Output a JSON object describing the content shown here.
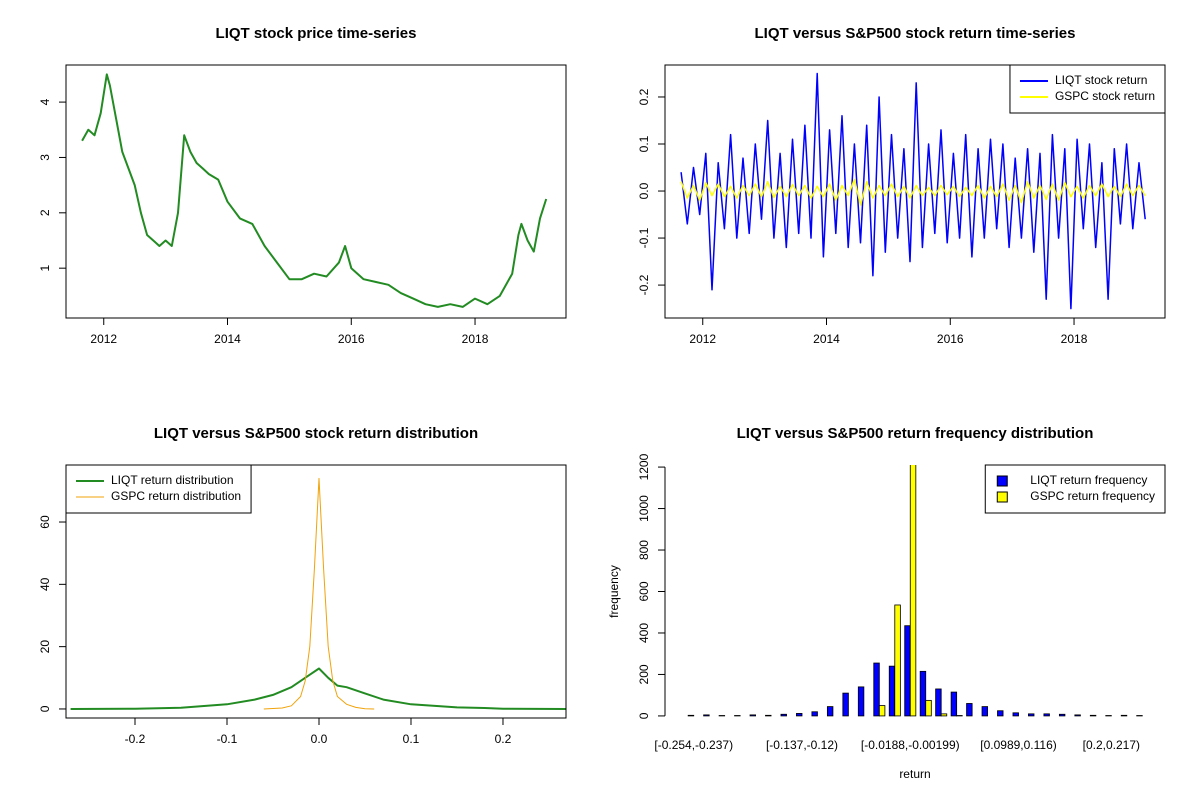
{
  "chart_data": [
    {
      "type": "line",
      "title": "LIQT stock price time-series",
      "xlim": [
        2011.39,
        2019.47
      ],
      "ylim": [
        0.1,
        4.67
      ],
      "xticks": [
        2012,
        2014,
        2016,
        2018
      ],
      "yticks": [
        1,
        2,
        3,
        4
      ],
      "x": [
        2011.65,
        2011.75,
        2011.85,
        2011.95,
        2012.05,
        2012.1,
        2012.2,
        2012.3,
        2012.4,
        2012.5,
        2012.6,
        2012.7,
        2012.8,
        2012.9,
        2013.0,
        2013.1,
        2013.2,
        2013.3,
        2013.4,
        2013.5,
        2013.6,
        2013.7,
        2013.85,
        2014.0,
        2014.2,
        2014.4,
        2014.6,
        2014.8,
        2015.0,
        2015.2,
        2015.4,
        2015.6,
        2015.8,
        2015.9,
        2016.0,
        2016.2,
        2016.4,
        2016.6,
        2016.8,
        2017.0,
        2017.2,
        2017.4,
        2017.6,
        2017.8,
        2018.0,
        2018.2,
        2018.4,
        2018.6,
        2018.7,
        2018.75,
        2018.85,
        2018.95,
        2019.05,
        2019.15
      ],
      "series": [
        {
          "color": "#228b22",
          "values": [
            3.3,
            3.5,
            3.4,
            3.8,
            4.5,
            4.3,
            3.7,
            3.1,
            2.8,
            2.5,
            2.0,
            1.6,
            1.5,
            1.4,
            1.5,
            1.4,
            2.0,
            3.4,
            3.1,
            2.9,
            2.8,
            2.7,
            2.6,
            2.2,
            1.9,
            1.8,
            1.4,
            1.1,
            0.8,
            0.8,
            0.9,
            0.85,
            1.1,
            1.4,
            1.0,
            0.8,
            0.75,
            0.7,
            0.55,
            0.45,
            0.35,
            0.3,
            0.35,
            0.3,
            0.45,
            0.35,
            0.5,
            0.9,
            1.6,
            1.8,
            1.5,
            1.3,
            1.9,
            2.25
          ]
        }
      ]
    },
    {
      "type": "line",
      "title": "LIQT versus S&P500 stock return time-series",
      "xlim": [
        2011.39,
        2019.47
      ],
      "ylim": [
        -0.27,
        0.268
      ],
      "xticks": [
        2012,
        2014,
        2016,
        2018
      ],
      "yticks": [
        -0.2,
        -0.1,
        {
          "value": 0,
          "label": "0.0"
        },
        0.1,
        0.2
      ],
      "legend": "topright",
      "x": [
        2011.65,
        2011.75,
        2011.85,
        2011.95,
        2012.05,
        2012.15,
        2012.25,
        2012.35,
        2012.45,
        2012.55,
        2012.65,
        2012.75,
        2012.85,
        2012.95,
        2013.05,
        2013.15,
        2013.25,
        2013.35,
        2013.45,
        2013.55,
        2013.65,
        2013.75,
        2013.85,
        2013.95,
        2014.05,
        2014.15,
        2014.25,
        2014.35,
        2014.45,
        2014.55,
        2014.65,
        2014.75,
        2014.85,
        2014.95,
        2015.05,
        2015.15,
        2015.25,
        2015.35,
        2015.45,
        2015.55,
        2015.65,
        2015.75,
        2015.85,
        2015.95,
        2016.05,
        2016.15,
        2016.25,
        2016.35,
        2016.45,
        2016.55,
        2016.65,
        2016.75,
        2016.85,
        2016.95,
        2017.05,
        2017.15,
        2017.25,
        2017.35,
        2017.45,
        2017.55,
        2017.65,
        2017.75,
        2017.85,
        2017.95,
        2018.05,
        2018.15,
        2018.25,
        2018.35,
        2018.45,
        2018.55,
        2018.65,
        2018.75,
        2018.85,
        2018.95,
        2019.05,
        2019.15
      ],
      "series": [
        {
          "name": "LIQT stock return",
          "color": "#0000ff",
          "values": [
            0.04,
            -0.07,
            0.05,
            -0.05,
            0.08,
            -0.21,
            0.06,
            -0.08,
            0.12,
            -0.1,
            0.07,
            -0.09,
            0.1,
            -0.06,
            0.15,
            -0.1,
            0.08,
            -0.12,
            0.11,
            -0.09,
            0.14,
            -0.1,
            0.25,
            -0.14,
            0.13,
            -0.09,
            0.16,
            -0.12,
            0.1,
            -0.11,
            0.14,
            -0.18,
            0.2,
            -0.13,
            0.12,
            -0.1,
            0.09,
            -0.15,
            0.23,
            -0.12,
            0.1,
            -0.09,
            0.13,
            -0.11,
            0.08,
            -0.1,
            0.12,
            -0.14,
            0.09,
            -0.1,
            0.11,
            -0.08,
            0.1,
            -0.12,
            0.07,
            -0.1,
            0.09,
            -0.13,
            0.08,
            -0.23,
            0.12,
            -0.1,
            0.09,
            -0.25,
            0.11,
            -0.08,
            0.1,
            -0.12,
            0.06,
            -0.23,
            0.09,
            -0.07,
            0.1,
            -0.08,
            0.06,
            -0.06
          ]
        },
        {
          "name": "GSPC stock return",
          "color": "#ffff00",
          "values": [
            0.02,
            -0.015,
            0.012,
            -0.02,
            0.018,
            -0.01,
            0.015,
            -0.012,
            0.01,
            -0.015,
            0.012,
            -0.01,
            0.015,
            -0.012,
            0.02,
            -0.014,
            0.01,
            -0.012,
            0.014,
            -0.01,
            0.012,
            -0.015,
            0.01,
            -0.012,
            0.015,
            -0.02,
            0.012,
            -0.01,
            0.025,
            -0.03,
            0.02,
            -0.015,
            0.012,
            -0.01,
            0.015,
            -0.012,
            0.01,
            -0.015,
            0.012,
            -0.01,
            0.008,
            -0.01,
            0.012,
            -0.008,
            0.01,
            -0.012,
            0.008,
            -0.01,
            0.012,
            -0.015,
            0.01,
            -0.012,
            0.015,
            -0.02,
            0.012,
            -0.025,
            0.02,
            -0.015,
            0.012,
            -0.018,
            0.015,
            -0.02,
            0.018,
            -0.012,
            0.01,
            -0.015,
            0.012,
            -0.01,
            0.015,
            -0.012,
            0.01,
            -0.012,
            0.015,
            -0.01,
            0.012,
            -0.01
          ]
        }
      ]
    },
    {
      "type": "line",
      "title": "LIQT versus S&P500 stock return distribution",
      "xlim": [
        -0.275,
        0.2685
      ],
      "ylim": [
        -2.9,
        78.3
      ],
      "xticks": [
        -0.2,
        -0.1,
        {
          "value": 0,
          "label": "0.0"
        },
        0.1,
        0.2
      ],
      "yticks": [
        0,
        20,
        40,
        60
      ],
      "legend": "topleft",
      "series": [
        {
          "name": "LIQT return distribution",
          "color": "#228b22",
          "width": 2,
          "x": [
            -0.27,
            -0.2,
            -0.15,
            -0.1,
            -0.07,
            -0.05,
            -0.03,
            -0.02,
            -0.01,
            0,
            0.01,
            0.02,
            0.03,
            0.05,
            0.07,
            0.1,
            0.15,
            0.18,
            0.2,
            0.27
          ],
          "values": [
            0,
            0.1,
            0.4,
            1.5,
            3,
            4.5,
            7,
            9,
            11,
            13,
            10,
            7.5,
            7,
            5,
            3,
            1.5,
            0.5,
            0.3,
            0.1,
            0
          ]
        },
        {
          "name": "GSPC return distribution",
          "color": "#f0a30a",
          "width": 1,
          "x": [
            -0.06,
            -0.04,
            -0.03,
            -0.02,
            -0.015,
            -0.01,
            -0.005,
            0,
            0.005,
            0.01,
            0.015,
            0.02,
            0.03,
            0.04,
            0.05,
            0.06
          ],
          "values": [
            0,
            0.3,
            1,
            4,
            9,
            20,
            45,
            74,
            45,
            20,
            9,
            4,
            1.5,
            0.5,
            0.1,
            0
          ]
        }
      ]
    },
    {
      "type": "bar",
      "title": "LIQT versus S&P500 return frequency distribution",
      "xlabel": "return",
      "ylabel": "frequency",
      "ylim": [
        -10,
        1210
      ],
      "yticks": [
        0,
        200,
        400,
        600,
        800,
        1000,
        1200
      ],
      "legend": "topright",
      "categories": [
        "[-0.254,-0.237)",
        null,
        null,
        null,
        null,
        null,
        null,
        "[-0.137,-0.12)",
        null,
        null,
        null,
        null,
        null,
        null,
        "[-0.0188,-0.00199)",
        null,
        null,
        null,
        null,
        null,
        null,
        "[0.0989,0.116)",
        null,
        null,
        null,
        null,
        null,
        "[0.2,0.217)",
        null,
        null
      ],
      "series": [
        {
          "name": "LIQT return frequency",
          "color": "#0000ff",
          "values": [
            3,
            5,
            2,
            2,
            5,
            3,
            8,
            12,
            20,
            45,
            110,
            140,
            255,
            240,
            435,
            215,
            130,
            115,
            60,
            45,
            25,
            15,
            10,
            10,
            8,
            5,
            3,
            2,
            3,
            2
          ]
        },
        {
          "name": "GSPC return frequency",
          "color": "#ffff00",
          "values": [
            0,
            0,
            0,
            0,
            0,
            0,
            0,
            0,
            0,
            0,
            0,
            0,
            50,
            535,
            1225,
            75,
            10,
            2,
            0,
            0,
            0,
            0,
            0,
            0,
            0,
            0,
            0,
            0,
            0,
            0
          ]
        }
      ]
    }
  ]
}
